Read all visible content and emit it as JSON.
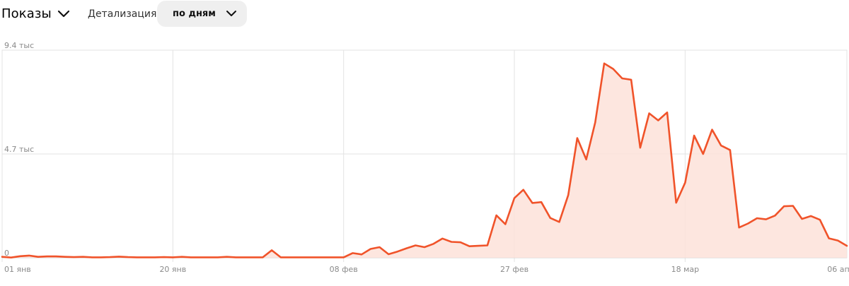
{
  "toolbar": {
    "metric_label": "Показы",
    "detail_label": "Детализация",
    "period_label": "по дням"
  },
  "colors": {
    "line": "#f0532a",
    "area": "#fde2d9",
    "grid": "#e3e3e3"
  },
  "chart_data": {
    "type": "area",
    "title": "",
    "xlabel": "",
    "ylabel": "",
    "ylim": [
      0,
      9400
    ],
    "y_tick_labels": [
      "9.4 тыс",
      "4.7 тыс",
      "0"
    ],
    "y_tick_values": [
      9400,
      4700,
      0
    ],
    "x_tick_labels": [
      "01 янв",
      "20 янв",
      "08 фев",
      "27 фев",
      "18 мар",
      "06 апр"
    ],
    "x_tick_days": [
      0,
      19,
      38,
      57,
      76,
      95
    ],
    "x_start": "01 янв",
    "grid": true,
    "series": [
      {
        "values": [
          40,
          10,
          70,
          100,
          40,
          60,
          60,
          40,
          30,
          40,
          20,
          20,
          30,
          50,
          30,
          20,
          20,
          20,
          30,
          20,
          40,
          20,
          20,
          20,
          20,
          40,
          20,
          20,
          20,
          20,
          340,
          20,
          20,
          20,
          20,
          20,
          20,
          20,
          20,
          210,
          150,
          400,
          480,
          160,
          280,
          430,
          560,
          480,
          630,
          870,
          720,
          700,
          520,
          540,
          560,
          1920,
          1520,
          2700,
          3080,
          2480,
          2520,
          1800,
          1620,
          2840,
          5420,
          4450,
          6130,
          8800,
          8550,
          8120,
          8060,
          4980,
          6540,
          6220,
          6580,
          2490,
          3400,
          5530,
          4700,
          5800,
          5080,
          4880,
          1370,
          1550,
          1790,
          1740,
          1910,
          2330,
          2350,
          1760,
          1890,
          1720,
          880,
          780,
          540
        ]
      }
    ]
  }
}
